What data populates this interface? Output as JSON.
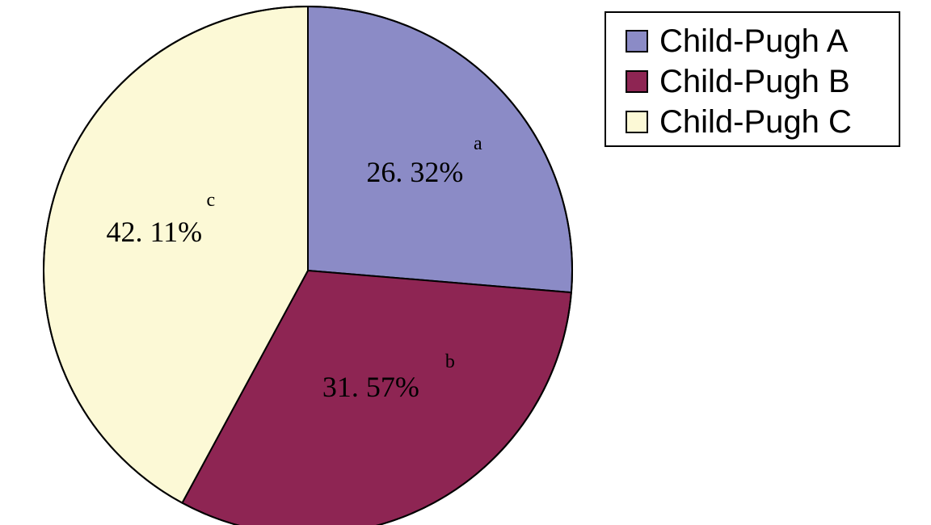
{
  "chart_data": {
    "type": "pie",
    "title": "",
    "slices": [
      {
        "name": "Child-Pugh A",
        "letter": "a",
        "value": 26.32,
        "label": "26. 32%",
        "color": "#8b8bc6"
      },
      {
        "name": "Child-Pugh B",
        "letter": "b",
        "value": 31.57,
        "label": "31. 57%",
        "color": "#8e2553"
      },
      {
        "name": "Child-Pugh C",
        "letter": "c",
        "value": 42.11,
        "label": "42. 11%",
        "color": "#fcf9d6"
      }
    ],
    "legend_position": "top-right"
  }
}
